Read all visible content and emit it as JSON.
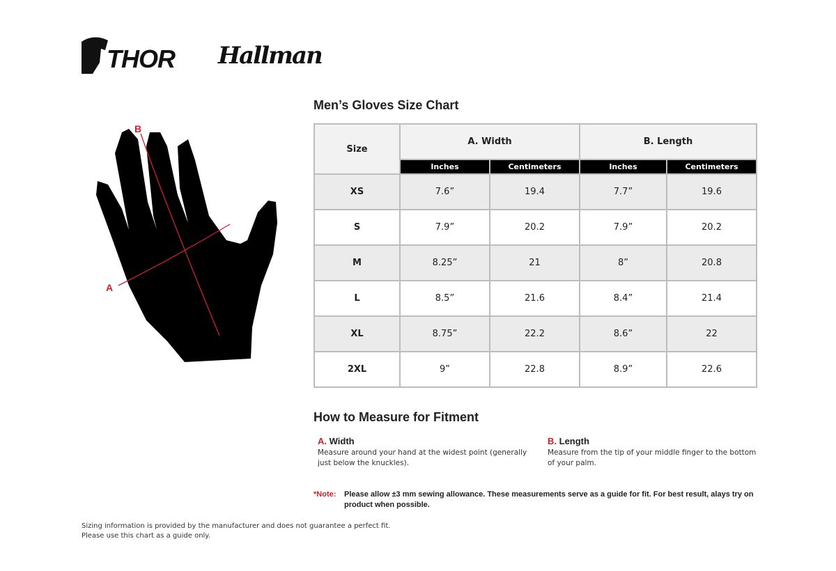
{
  "brands": [
    "THOR",
    "Hallman"
  ],
  "size_chart": {
    "title": "Men’s Gloves Size Chart",
    "size_header": "Size",
    "groups": [
      "A. Width",
      "B. Length"
    ],
    "units": [
      "Inches",
      "Centimeters",
      "Inches",
      "Centimeters"
    ],
    "rows": [
      [
        "XS",
        "7.6”",
        "19.4",
        "7.7”",
        "19.6"
      ],
      [
        "S",
        "7.9”",
        "20.2",
        "7.9”",
        "20.2"
      ],
      [
        "M",
        "8.25”",
        "21",
        "8”",
        "20.8"
      ],
      [
        "L",
        "8.5”",
        "21.6",
        "8.4”",
        "21.4"
      ],
      [
        "XL",
        "8.75”",
        "22.2",
        "8.6”",
        "22"
      ],
      [
        "2XL",
        "9”",
        "22.8",
        "8.9”",
        "22.6"
      ]
    ]
  },
  "diagram": {
    "label_a": "A",
    "label_b": "B"
  },
  "measure": {
    "title": "How to Measure for Fitment",
    "width": {
      "key": "A.",
      "label": "Width",
      "desc": "Measure around your hand at the widest point (generally just below the knuckles)."
    },
    "length": {
      "key": "B.",
      "label": "Length",
      "desc": "Measure from the tip of your middle finger to the bottom of your palm."
    }
  },
  "note": {
    "label": "*Note:",
    "text": "Please allow ±3 mm sewing allowance. These measurements serve as a guide for fit. For best result, alays try on product when possible."
  },
  "footer": [
    "Sizing information is provided by the manufacturer and does not guarantee a perfect fit.",
    "Please use this chart as a guide only."
  ],
  "colors": {
    "accent": "#d0202a",
    "header_bg": "#000000",
    "stripe": "#ebebeb"
  }
}
